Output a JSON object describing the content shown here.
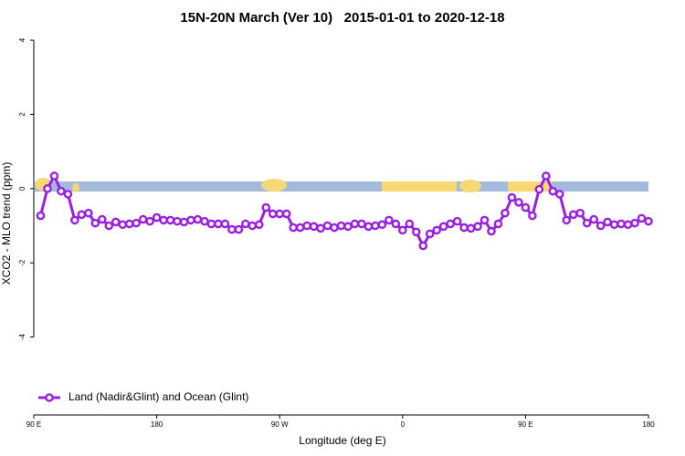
{
  "chart_data": {
    "type": "line",
    "title": "15N-20N March (Ver 10)   2015-01-01 to 2020-12-18",
    "x_label": "Longitude (deg E)",
    "y_label": "XCO2 - MLO trend (ppm)",
    "x": [
      95,
      100,
      105,
      110,
      115,
      120,
      125,
      130,
      135,
      140,
      145,
      150,
      155,
      160,
      165,
      170,
      175,
      180,
      185,
      190,
      195,
      200,
      205,
      210,
      215,
      220,
      225,
      230,
      235,
      240,
      245,
      250,
      255,
      260,
      265,
      270,
      275,
      280,
      285,
      290,
      295,
      300,
      305,
      310,
      315,
      320,
      325,
      330,
      335,
      340,
      345,
      350,
      355,
      360,
      365,
      370,
      375,
      380,
      385,
      390,
      395,
      400,
      405,
      410,
      415,
      420,
      425,
      430,
      435,
      440,
      445,
      450,
      455,
      460,
      465,
      470,
      475,
      480,
      485,
      490,
      495,
      500,
      505,
      510,
      515,
      520,
      525,
      530,
      535,
      540
    ],
    "series": [
      {
        "name": "Land (Nadir&Glint) and Ocean (Glint)",
        "color": "#9a1ee6",
        "values": [
          -0.73,
          0,
          0.34,
          -0.07,
          -0.15,
          -0.85,
          -0.7,
          -0.66,
          -0.93,
          -0.83,
          -1.0,
          -0.9,
          -0.97,
          -0.95,
          -0.93,
          -0.83,
          -0.88,
          -0.78,
          -0.85,
          -0.85,
          -0.88,
          -0.9,
          -0.85,
          -0.83,
          -0.88,
          -0.95,
          -0.95,
          -0.95,
          -1.1,
          -1.1,
          -0.95,
          -1.0,
          -0.97,
          -0.51,
          -0.68,
          -0.68,
          -0.68,
          -1.05,
          -1.05,
          -1.0,
          -1.02,
          -1.07,
          -1.0,
          -1.05,
          -1.0,
          -1.02,
          -0.95,
          -0.95,
          -1.02,
          -1.0,
          -0.97,
          -0.85,
          -0.95,
          -1.12,
          -0.95,
          -1.17,
          -1.54,
          -1.22,
          -1.12,
          -1.02,
          -0.95,
          -0.88,
          -1.05,
          -1.07,
          -1.02,
          -0.85,
          -1.15,
          -0.95,
          -0.66,
          -0.24,
          -0.37,
          -0.51,
          -0.73,
          -0.02,
          0.34,
          -0.07,
          -0.15,
          -0.85,
          -0.7,
          -0.66,
          -0.93,
          -0.83,
          -1.0,
          -0.9,
          -0.97,
          -0.95,
          -0.97,
          -0.93,
          -0.8,
          -0.88
        ]
      }
    ],
    "xlim": [
      90,
      540
    ],
    "xticks": [
      {
        "value": 90,
        "label": "90 E"
      },
      {
        "value": 180,
        "label": "180"
      },
      {
        "value": 270,
        "label": "90 W"
      },
      {
        "value": 360,
        "label": "0"
      },
      {
        "value": 450,
        "label": "90 E"
      },
      {
        "value": 540,
        "label": "180"
      }
    ],
    "ylim": [
      -6.1,
      4.1
    ],
    "yticks": [
      -4,
      -2,
      0,
      2,
      4
    ],
    "legend": "bottom-left"
  }
}
